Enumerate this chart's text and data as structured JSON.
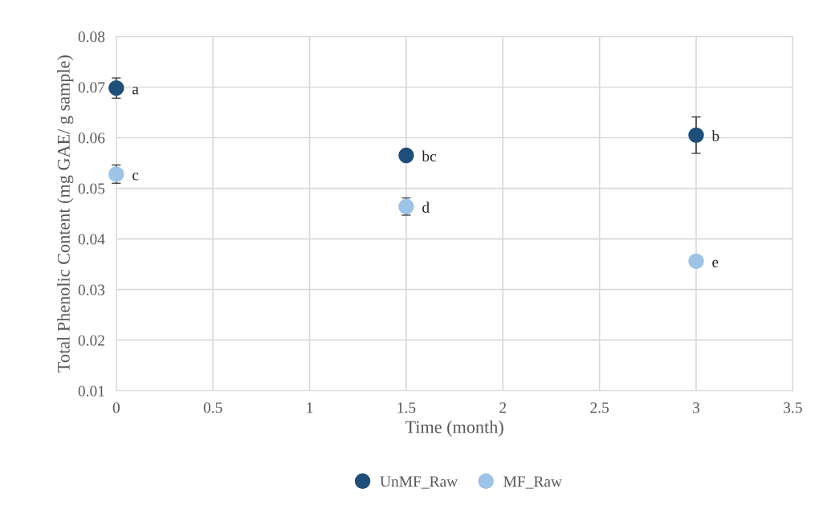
{
  "chart_data": {
    "type": "scatter",
    "xlabel": "Time (month)",
    "ylabel": "Total Phenolic Content (mg GAE/ g sample)",
    "series": [
      {
        "name": "UnMF_Raw",
        "color": "#1f4e79",
        "x": [
          0,
          1.5,
          3
        ],
        "values": [
          0.0698,
          0.0565,
          0.0605
        ],
        "errors": [
          0.002,
          null,
          0.0036
        ]
      },
      {
        "name": "MF_Raw",
        "color": "#9dc3e6",
        "x": [
          0,
          1.5,
          3
        ],
        "values": [
          0.0528,
          0.0464,
          0.0356
        ],
        "errors": [
          0.0018,
          0.0017,
          null
        ]
      }
    ],
    "annotations": [
      {
        "text": "a",
        "x": 0,
        "y": 0.0698
      },
      {
        "text": "bc",
        "x": 1.5,
        "y": 0.0565
      },
      {
        "text": "b",
        "x": 3,
        "y": 0.0605
      },
      {
        "text": "c",
        "x": 0,
        "y": 0.0528
      },
      {
        "text": "d",
        "x": 1.5,
        "y": 0.0464
      },
      {
        "text": "e",
        "x": 3,
        "y": 0.0356
      }
    ],
    "xlim": [
      0,
      3.5
    ],
    "xticks": [
      0,
      0.5,
      1,
      1.5,
      2,
      2.5,
      3,
      3.5
    ],
    "ylim": [
      0.01,
      0.08
    ],
    "yticks": [
      0.01,
      0.02,
      0.03,
      0.04,
      0.05,
      0.06,
      0.07,
      0.08
    ],
    "grid": true,
    "legend": "bottom",
    "marker": "circle"
  }
}
